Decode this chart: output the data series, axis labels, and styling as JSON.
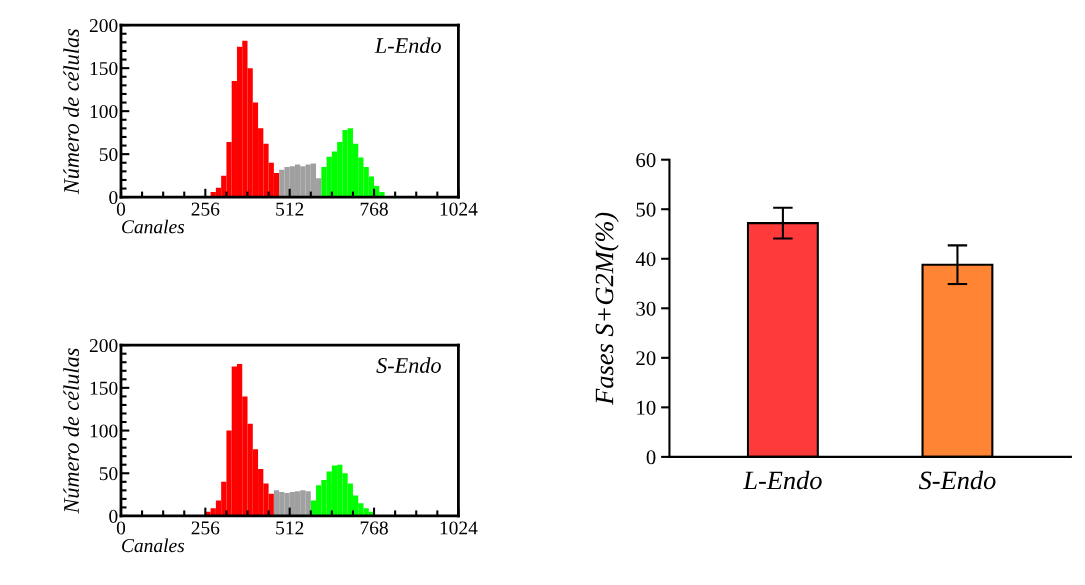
{
  "chart_data": [
    {
      "type": "histogram",
      "xlabel": "Canales",
      "ylabel": "Número de células",
      "annotations": [
        "L-Endo"
      ],
      "xlim": [
        0,
        1024
      ],
      "xticks": [
        0,
        256,
        512,
        768,
        1024
      ],
      "ylim": [
        0,
        200
      ],
      "yticks": [
        0,
        50,
        100,
        150,
        200
      ],
      "bins": [
        272,
        288,
        304,
        320,
        336,
        352,
        368,
        384,
        400,
        416,
        432,
        448,
        464,
        480,
        496,
        512,
        528,
        544,
        560,
        576,
        592,
        608,
        624,
        640,
        656,
        672,
        688,
        704,
        720,
        736,
        752,
        768,
        784,
        800
      ],
      "series": [
        {
          "color": "#ff0000",
          "values": [
            6,
            11,
            25,
            64,
            135,
            175,
            182,
            150,
            110,
            80,
            62,
            40,
            28,
            null,
            null,
            null,
            null,
            null,
            null,
            null,
            null,
            null,
            null,
            null,
            null,
            null,
            null,
            null,
            null,
            null,
            null,
            null,
            null
          ]
        },
        {
          "color": "#a0a0a0",
          "values": [
            null,
            null,
            null,
            null,
            null,
            null,
            null,
            null,
            null,
            null,
            null,
            null,
            null,
            32,
            35,
            36,
            38,
            36,
            38,
            39,
            22,
            null,
            null,
            null,
            null,
            null,
            null,
            null,
            null,
            null,
            null,
            null,
            null
          ]
        },
        {
          "color": "#00ff00",
          "values": [
            null,
            null,
            null,
            null,
            null,
            null,
            null,
            null,
            null,
            null,
            null,
            null,
            null,
            null,
            null,
            null,
            null,
            null,
            null,
            null,
            null,
            35,
            47,
            53,
            64,
            78,
            80,
            62,
            46,
            35,
            24,
            13,
            6
          ]
        }
      ]
    },
    {
      "type": "histogram",
      "xlabel": "Canales",
      "ylabel": "Número de células",
      "annotations": [
        "S-Endo"
      ],
      "xlim": [
        0,
        1024
      ],
      "xticks": [
        0,
        256,
        512,
        768,
        1024
      ],
      "ylim": [
        0,
        200
      ],
      "yticks": [
        0,
        50,
        100,
        150,
        200
      ],
      "bins": [
        256,
        272,
        288,
        304,
        320,
        336,
        352,
        368,
        384,
        400,
        416,
        432,
        448,
        464,
        480,
        496,
        512,
        528,
        544,
        560,
        576,
        592,
        608,
        624,
        640,
        656,
        672,
        688,
        704,
        720,
        736,
        752,
        768
      ],
      "series": [
        {
          "color": "#ff0000",
          "values": [
            5,
            9,
            18,
            40,
            100,
            175,
            178,
            140,
            108,
            78,
            55,
            38,
            26,
            null,
            null,
            null,
            null,
            null,
            null,
            null,
            null,
            null,
            null,
            null,
            null,
            null,
            null,
            null,
            null,
            null,
            null,
            null
          ]
        },
        {
          "color": "#a0a0a0",
          "values": [
            null,
            null,
            null,
            null,
            null,
            null,
            null,
            null,
            null,
            null,
            null,
            null,
            null,
            30,
            28,
            27,
            28,
            29,
            30,
            29,
            null,
            null,
            null,
            null,
            null,
            null,
            null,
            null,
            null,
            null,
            null,
            null
          ]
        },
        {
          "color": "#00ff00",
          "values": [
            null,
            null,
            null,
            null,
            null,
            null,
            null,
            null,
            null,
            null,
            null,
            null,
            null,
            null,
            null,
            null,
            null,
            null,
            null,
            null,
            18,
            36,
            42,
            52,
            59,
            60,
            50,
            38,
            24,
            15,
            9,
            5
          ]
        }
      ]
    },
    {
      "type": "bar",
      "ylabel": "Fases S+G2M(%)",
      "categories": [
        "L-Endo",
        "S-Endo"
      ],
      "values": [
        47.2,
        38.8
      ],
      "errors": [
        3.1,
        3.9
      ],
      "colors": [
        "#ff3a3a",
        "#ff8433"
      ],
      "ylim": [
        0,
        60
      ],
      "yticks": [
        0,
        10,
        20,
        30,
        40,
        50,
        60
      ]
    }
  ]
}
